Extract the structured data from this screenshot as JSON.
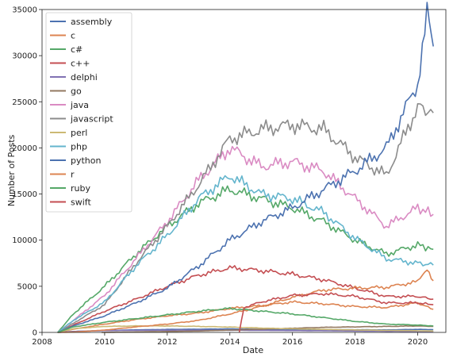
{
  "chart_data": {
    "type": "line",
    "title": "",
    "xlabel": "Date",
    "ylabel": "Number of Posts",
    "xlim": [
      2008.0,
      2020.9
    ],
    "ylim": [
      0,
      35000
    ],
    "xticks": [
      2008,
      2010,
      2012,
      2014,
      2016,
      2018,
      2020
    ],
    "yticks": [
      0,
      5000,
      10000,
      15000,
      20000,
      25000,
      30000,
      35000
    ],
    "legend_position": "top-left",
    "grid": false,
    "series": [
      {
        "name": "assembly",
        "color": "#4c72b0",
        "x": [
          2008.5,
          2009,
          2010,
          2011,
          2012,
          2013,
          2014,
          2015,
          2016,
          2017,
          2018,
          2019,
          2020,
          2020.5
        ],
        "y": [
          0,
          100,
          200,
          280,
          320,
          350,
          380,
          330,
          310,
          300,
          290,
          270,
          330,
          300
        ]
      },
      {
        "name": "c",
        "color": "#dd8452",
        "x": [
          2008.5,
          2009,
          2010,
          2011,
          2012,
          2013,
          2014,
          2015,
          2016,
          2017,
          2018,
          2019,
          2020,
          2020.5
        ],
        "y": [
          0,
          350,
          900,
          1400,
          1800,
          2100,
          2600,
          2900,
          3300,
          3100,
          2800,
          2700,
          3200,
          2500
        ]
      },
      {
        "name": "c#",
        "color": "#55a868",
        "x": [
          2008.5,
          2009,
          2010,
          2011,
          2012,
          2013,
          2014,
          2015,
          2016,
          2017,
          2018,
          2019,
          2020,
          2020.5
        ],
        "y": [
          0,
          2000,
          5000,
          8500,
          11500,
          14000,
          15500,
          14500,
          13500,
          12000,
          10000,
          8500,
          9500,
          9000
        ]
      },
      {
        "name": "c++",
        "color": "#c44e52",
        "x": [
          2008.5,
          2009,
          2010,
          2011,
          2012,
          2013,
          2014,
          2015,
          2016,
          2017,
          2018,
          2019,
          2020,
          2020.5
        ],
        "y": [
          0,
          800,
          2300,
          3600,
          5000,
          6200,
          7000,
          6700,
          6300,
          5700,
          4800,
          3900,
          3900,
          3600
        ]
      },
      {
        "name": "delphi",
        "color": "#8172b3",
        "x": [
          2008.5,
          2009,
          2010,
          2011,
          2012,
          2013,
          2014,
          2015,
          2016,
          2017,
          2018,
          2019,
          2020,
          2020.5
        ],
        "y": [
          0,
          100,
          200,
          230,
          240,
          250,
          240,
          220,
          200,
          180,
          150,
          120,
          110,
          100
        ]
      },
      {
        "name": "go",
        "color": "#937860",
        "x": [
          2009.9,
          2011,
          2012,
          2013,
          2014,
          2015,
          2016,
          2017,
          2018,
          2019,
          2020,
          2020.5
        ],
        "y": [
          0,
          50,
          100,
          150,
          250,
          350,
          450,
          550,
          600,
          650,
          700,
          650
        ]
      },
      {
        "name": "java",
        "color": "#da8bc3",
        "x": [
          2008.5,
          2009,
          2010,
          2011,
          2012,
          2013,
          2014,
          2015,
          2016,
          2017,
          2018,
          2019,
          2020,
          2020.5
        ],
        "y": [
          0,
          1300,
          4000,
          8000,
          12000,
          16500,
          20000,
          18000,
          18500,
          17500,
          14500,
          11500,
          13500,
          12800
        ]
      },
      {
        "name": "javascript",
        "color": "#8c8c8c",
        "x": [
          2008.5,
          2009,
          2010,
          2011,
          2012,
          2013,
          2014,
          2015,
          2016,
          2017,
          2018,
          2019,
          2020,
          2020.5
        ],
        "y": [
          0,
          1000,
          3000,
          7500,
          11500,
          16000,
          21000,
          22000,
          22500,
          22000,
          19000,
          17000,
          24500,
          23800
        ]
      },
      {
        "name": "perl",
        "color": "#ccb974",
        "x": [
          2008.5,
          2009,
          2010,
          2011,
          2012,
          2013,
          2014,
          2015,
          2016,
          2017,
          2018,
          2019,
          2020,
          2020.5
        ],
        "y": [
          0,
          400,
          650,
          700,
          700,
          650,
          580,
          470,
          390,
          330,
          270,
          220,
          180,
          150
        ]
      },
      {
        "name": "php",
        "color": "#64b5cd",
        "x": [
          2008.5,
          2009,
          2010,
          2011,
          2012,
          2013,
          2014,
          2015,
          2016,
          2017,
          2018,
          2019,
          2020,
          2020.5
        ],
        "y": [
          0,
          1300,
          3300,
          7200,
          10500,
          14500,
          17000,
          15000,
          14500,
          13000,
          10200,
          8000,
          7500,
          7300
        ]
      },
      {
        "name": "python",
        "color": "#4c72b0",
        "x": [
          2008.5,
          2009,
          2010,
          2011,
          2012,
          2013,
          2014,
          2015,
          2016,
          2017,
          2018,
          2019,
          2020,
          2020.3,
          2020.5
        ],
        "y": [
          0,
          700,
          1800,
          3200,
          4800,
          7200,
          10000,
          12000,
          13500,
          15500,
          17500,
          20000,
          27000,
          34500,
          31000
        ]
      },
      {
        "name": "r",
        "color": "#dd8452",
        "x": [
          2008.5,
          2009,
          2010,
          2011,
          2012,
          2013,
          2014,
          2015,
          2016,
          2017,
          2018,
          2019,
          2020,
          2020.3,
          2020.5
        ],
        "y": [
          0,
          40,
          250,
          600,
          900,
          1300,
          2000,
          2800,
          3800,
          4600,
          4800,
          4900,
          5500,
          7000,
          5600
        ]
      },
      {
        "name": "ruby",
        "color": "#55a868",
        "x": [
          2008.5,
          2009,
          2010,
          2011,
          2012,
          2013,
          2014,
          2015,
          2016,
          2017,
          2018,
          2019,
          2020,
          2020.5
        ],
        "y": [
          0,
          600,
          1100,
          1500,
          1900,
          2300,
          2600,
          2300,
          2000,
          1600,
          1200,
          900,
          800,
          700
        ]
      },
      {
        "name": "swift",
        "color": "#c44e52",
        "x": [
          2014.3,
          2014.45,
          2015,
          2016,
          2017,
          2018,
          2019,
          2020,
          2020.5
        ],
        "y": [
          0,
          2700,
          3300,
          4000,
          4200,
          3900,
          3200,
          3200,
          3000
        ]
      }
    ]
  }
}
